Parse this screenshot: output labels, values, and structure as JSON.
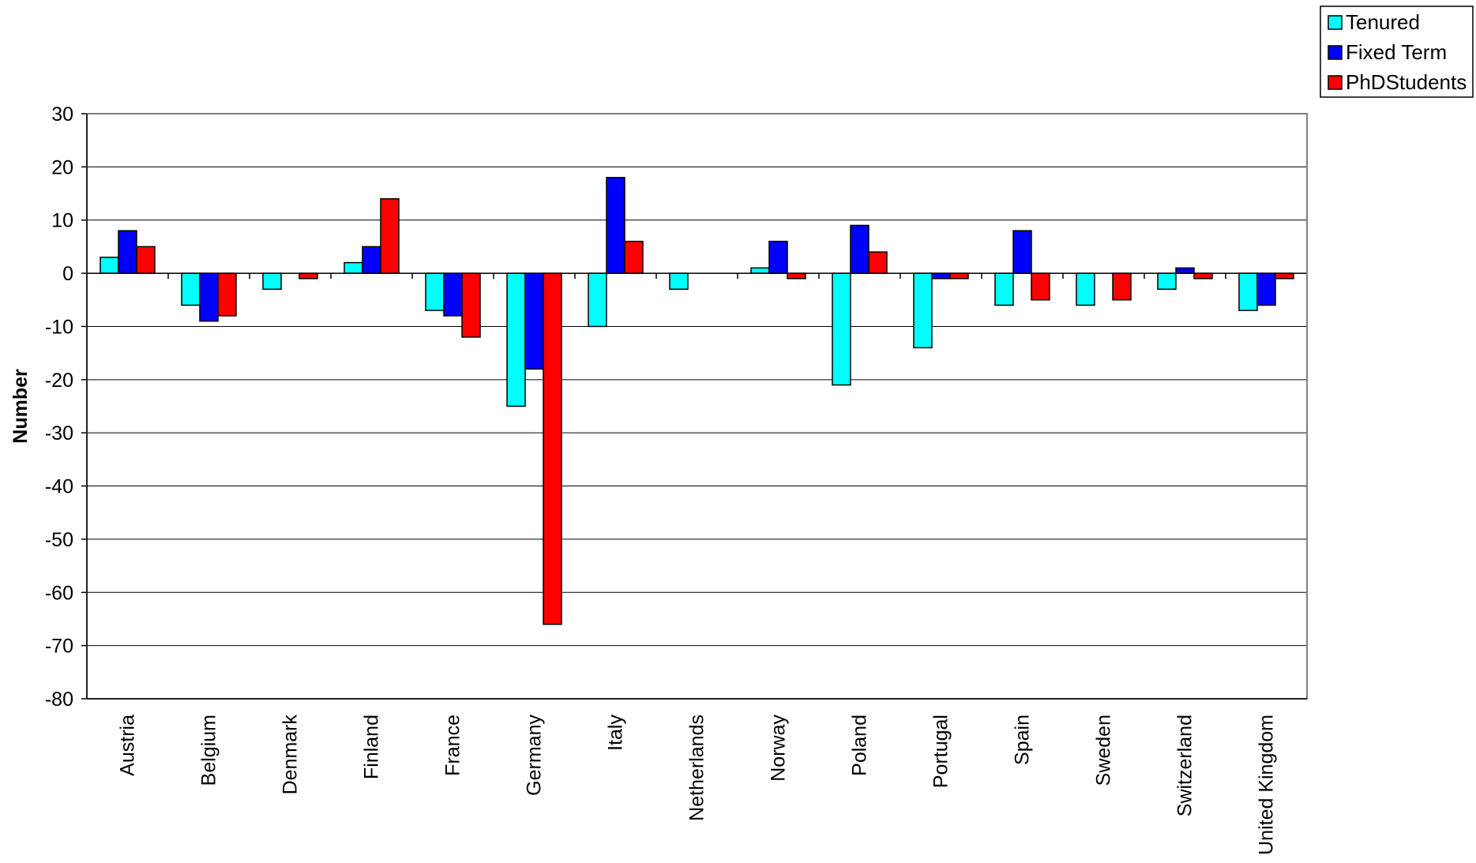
{
  "chart_data": {
    "type": "bar",
    "title": "",
    "xlabel": "",
    "ylabel": "Number",
    "ylim": [
      -80,
      30
    ],
    "ytick_step": 10,
    "grid": true,
    "legend_position": "top-right",
    "categories": [
      "Austria",
      "Belgium",
      "Denmark",
      "Finland",
      "France",
      "Germany",
      "Italy",
      "Netherlands",
      "Norway",
      "Poland",
      "Portugal",
      "Spain",
      "Sweden",
      "Switzerland",
      "United Kingdom"
    ],
    "series": [
      {
        "name": "Tenured",
        "color": "#00FFFF",
        "values": [
          3,
          -6,
          -3,
          2,
          -7,
          -25,
          -10,
          -3,
          1,
          -21,
          -14,
          -6,
          -6,
          -3,
          -7
        ]
      },
      {
        "name": "Fixed Term",
        "color": "#0000FF",
        "values": [
          8,
          -9,
          0,
          5,
          -8,
          -18,
          18,
          0,
          6,
          9,
          -1,
          8,
          0,
          1,
          -6
        ]
      },
      {
        "name": "PhDStudents",
        "color": "#FF0000",
        "values": [
          5,
          -8,
          -1,
          14,
          -12,
          -66,
          6,
          0,
          -1,
          4,
          -1,
          -5,
          -5,
          -1,
          -1
        ]
      }
    ]
  }
}
